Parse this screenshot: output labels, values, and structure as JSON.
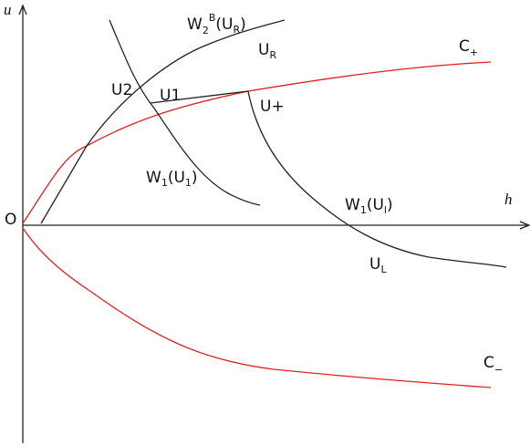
{
  "axes": {
    "vertical": "u",
    "horizontal": "h",
    "origin": "O"
  },
  "labels": {
    "w2b_ur": [
      "W",
      "2",
      "B",
      "(U",
      "R",
      ")"
    ],
    "u_r": [
      "U",
      "R"
    ],
    "c_plus": [
      "C",
      "+"
    ],
    "u2": "U2",
    "u1": "U1",
    "u_plus": "U+",
    "w1_u1": [
      "W",
      "1",
      "(U",
      "1",
      ")"
    ],
    "w1_ul": [
      "W",
      "1",
      "(U",
      "l",
      ")"
    ],
    "u_l": [
      "U",
      "L"
    ],
    "c_minus": [
      "C",
      "−"
    ]
  }
}
